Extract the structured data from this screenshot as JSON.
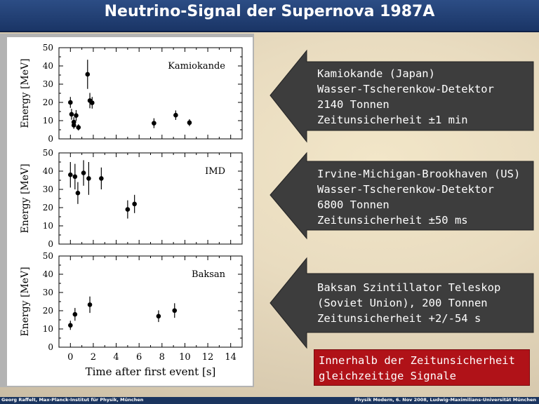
{
  "title": "Neutrino-Signal der Supernova 1987A",
  "callouts": [
    {
      "lines": [
        "Kamiokande (Japan)",
        "Wasser-Tscherenkow-Detektor",
        "2140 Tonnen",
        "Zeitunsicherheit ±1 min"
      ]
    },
    {
      "lines": [
        "Irvine-Michigan-Brookhaven (US)",
        "Wasser-Tscherenkow-Detektor",
        "6800 Tonnen",
        "Zeitunsicherheit ±50 ms"
      ]
    },
    {
      "lines": [
        "Baksan Szintillator Teleskop",
        "(Soviet Union), 200 Tonnen",
        "Zeitunsicherheit +2/-54 s"
      ]
    }
  ],
  "conclusion": {
    "lines": [
      "Innerhalb der Zeitunsicherheit",
      "gleichzeitige Signale"
    ]
  },
  "footer": {
    "left": "Georg Raffelt, Max-Planck-Institut für Physik, München",
    "right": "Physik Modern, 6. Nov 2008, Ludwig-Maximilians-Universität München"
  },
  "colors": {
    "title_bar": "#1f3b6e",
    "arrow": "#3d3d3d",
    "highlight": "#b01218"
  },
  "chart_data": [
    {
      "type": "scatter",
      "label": "Kamiokande",
      "xlabel": "",
      "ylabel": "Energy [MeV]",
      "xlim": [
        -1,
        15
      ],
      "ylim": [
        0,
        50
      ],
      "yticks": [
        0,
        10,
        20,
        30,
        40,
        50
      ],
      "points": [
        {
          "x": 0.0,
          "y": 20,
          "err": 3
        },
        {
          "x": 0.1,
          "y": 13.5,
          "err": 3
        },
        {
          "x": 0.3,
          "y": 7.5,
          "err": 2
        },
        {
          "x": 0.3,
          "y": 9.2,
          "err": 2.7
        },
        {
          "x": 0.5,
          "y": 12.8,
          "err": 3
        },
        {
          "x": 0.7,
          "y": 6.3,
          "err": 1.7
        },
        {
          "x": 1.5,
          "y": 35.4,
          "err": 8
        },
        {
          "x": 1.7,
          "y": 21,
          "err": 4.2
        },
        {
          "x": 1.9,
          "y": 19.8,
          "err": 3.2
        },
        {
          "x": 7.3,
          "y": 8.6,
          "err": 2.7
        },
        {
          "x": 9.2,
          "y": 13,
          "err": 2.6
        },
        {
          "x": 10.4,
          "y": 8.9,
          "err": 1.9
        }
      ]
    },
    {
      "type": "scatter",
      "label": "IMD",
      "xlabel": "",
      "ylabel": "Energy [MeV]",
      "xlim": [
        -1,
        15
      ],
      "ylim": [
        0,
        50
      ],
      "yticks": [
        0,
        10,
        20,
        30,
        40,
        50
      ],
      "points": [
        {
          "x": 0.0,
          "y": 38,
          "err": 7
        },
        {
          "x": 0.4,
          "y": 37,
          "err": 7
        },
        {
          "x": 0.65,
          "y": 28,
          "err": 6
        },
        {
          "x": 1.15,
          "y": 39,
          "err": 7
        },
        {
          "x": 1.6,
          "y": 36,
          "err": 9
        },
        {
          "x": 2.7,
          "y": 36,
          "err": 6
        },
        {
          "x": 5.0,
          "y": 19,
          "err": 5
        },
        {
          "x": 5.6,
          "y": 22,
          "err": 5
        }
      ]
    },
    {
      "type": "scatter",
      "label": "Baksan",
      "xlabel": "Time after first event [s]",
      "ylabel": "Energy [MeV]",
      "xlim": [
        -1,
        15
      ],
      "ylim": [
        0,
        50
      ],
      "yticks": [
        0,
        10,
        20,
        30,
        40,
        50
      ],
      "xticks": [
        0,
        2,
        4,
        6,
        8,
        10,
        12,
        14
      ],
      "points": [
        {
          "x": 0.0,
          "y": 12,
          "err": 2.5
        },
        {
          "x": 0.4,
          "y": 18,
          "err": 3.5
        },
        {
          "x": 1.7,
          "y": 23.3,
          "err": 4.5
        },
        {
          "x": 7.7,
          "y": 17,
          "err": 3.2
        },
        {
          "x": 9.1,
          "y": 20.1,
          "err": 4
        }
      ]
    }
  ]
}
